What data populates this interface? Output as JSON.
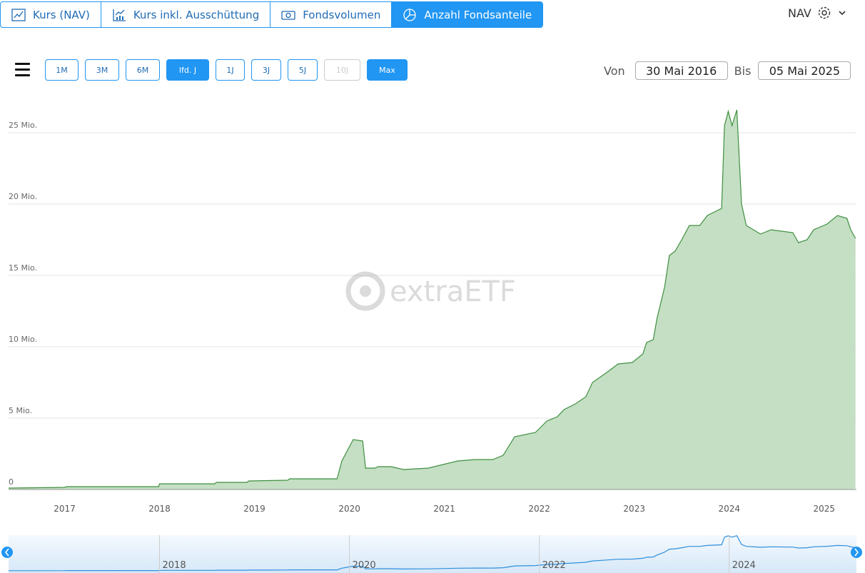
{
  "tabs": [
    {
      "label": "Kurs (NAV)",
      "active": false
    },
    {
      "label": "Kurs inkl. Ausschüttung",
      "active": false
    },
    {
      "label": "Fondsvolumen",
      "active": false
    },
    {
      "label": "Anzahl Fondsanteile",
      "active": true
    }
  ],
  "price_type": "NAV",
  "ranges": [
    {
      "label": "1M",
      "state": "normal"
    },
    {
      "label": "3M",
      "state": "normal"
    },
    {
      "label": "6M",
      "state": "normal"
    },
    {
      "label": "lfd. J",
      "state": "active"
    },
    {
      "label": "1J",
      "state": "normal"
    },
    {
      "label": "3J",
      "state": "normal"
    },
    {
      "label": "5J",
      "state": "normal"
    },
    {
      "label": "10J",
      "state": "disabled"
    },
    {
      "label": "Max",
      "state": "active"
    }
  ],
  "date_range": {
    "from_label": "Von",
    "from": "30 Mai 2016",
    "to_label": "Bis",
    "to": "05 Mai 2025"
  },
  "watermark": "extraETF",
  "chart_data": {
    "type": "area",
    "color": "#3f8f3f",
    "fill": "#c4dfc4",
    "grid": true,
    "x": [
      2016.41,
      2017.0,
      2017.02,
      2017.99,
      2018.0,
      2018.58,
      2018.6,
      2018.92,
      2018.94,
      2019.35,
      2019.37,
      2019.87,
      2019.92,
      2020.0,
      2020.04,
      2020.14,
      2020.17,
      2020.27,
      2020.3,
      2020.44,
      2020.57,
      2020.83,
      2021.14,
      2021.32,
      2021.51,
      2021.62,
      2021.74,
      2021.96,
      2022.08,
      2022.19,
      2022.26,
      2022.38,
      2022.49,
      2022.56,
      2022.71,
      2022.83,
      2022.98,
      2023.09,
      2023.13,
      2023.2,
      2023.24,
      2023.32,
      2023.37,
      2023.43,
      2023.5,
      2023.58,
      2023.69,
      2023.77,
      2023.92,
      2023.95,
      2023.99,
      2024.03,
      2024.08,
      2024.13,
      2024.18,
      2024.33,
      2024.44,
      2024.67,
      2024.73,
      2024.82,
      2024.89,
      2025.03,
      2025.14,
      2025.24,
      2025.28,
      2025.33
    ],
    "values": [
      100000,
      150000,
      200000,
      200000,
      400000,
      400000,
      500000,
      500000,
      600000,
      650000,
      750000,
      750000,
      2000000,
      3000000,
      3500000,
      3400000,
      1500000,
      1500000,
      1600000,
      1600000,
      1400000,
      1500000,
      2000000,
      2100000,
      2100000,
      2400000,
      3700000,
      4000000,
      4800000,
      5100000,
      5600000,
      6000000,
      6500000,
      7500000,
      8200000,
      8800000,
      8900000,
      9500000,
      10300000,
      10500000,
      12000000,
      14200000,
      16400000,
      16700000,
      17500000,
      18500000,
      18500000,
      19200000,
      19700000,
      25500000,
      26500000,
      25500000,
      26600000,
      20000000,
      18500000,
      17900000,
      18200000,
      18000000,
      17300000,
      17500000,
      18200000,
      18600000,
      19200000,
      19000000,
      18200000,
      17600000
    ],
    "xlim": [
      2016.41,
      2025.34
    ],
    "xticks": [
      2017,
      2018,
      2019,
      2020,
      2021,
      2022,
      2023,
      2024,
      2025
    ],
    "ylim": [
      0,
      27000000
    ],
    "yticks": [
      0,
      {
        "value": 5000000,
        "label": "5 Mio."
      },
      {
        "value": 10000000,
        "label": "10 Mio."
      },
      {
        "value": 15000000,
        "label": "15 Mio."
      },
      {
        "value": 20000000,
        "label": "20 Mio."
      },
      {
        "value": 25000000,
        "label": "25 Mio."
      }
    ],
    "navigator_ticks": [
      2018,
      2020,
      2022,
      2024
    ],
    "navigator_color": "#2f8fdc"
  }
}
